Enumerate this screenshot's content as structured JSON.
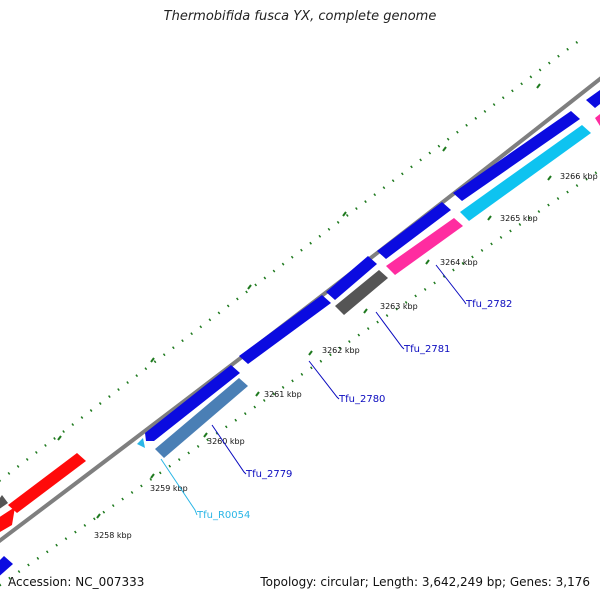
{
  "title": "Thermobifida fusca YX, complete genome",
  "footer": {
    "accession": "Accession: NC_007333",
    "topology": "Topology: circular; Length: 3,642,249 bp; Genes: 3,176"
  },
  "colors": {
    "backbone": "#7f7f7f",
    "tick": "#1f7a1f",
    "cds_dark_blue": "#0b0be0",
    "cds_steel_blue": "#4a7fb5",
    "cds_red": "#ff0a0a",
    "cds_pink": "#ff2ca0",
    "cds_cyan": "#0ec3f0",
    "cds_gray": "#555555",
    "label_blue": "#0b0bbf",
    "label_cyan": "#2bb6e6"
  },
  "kbp_labels": [
    "3258 kbp",
    "3259 kbp",
    "3260 kbp",
    "3261 kbp",
    "3262 kbp",
    "3263 kbp",
    "3264 kbp",
    "3265 kbp",
    "3266 kbp"
  ],
  "genes": [
    {
      "name": "Tfu_R0054",
      "color_key": "label_cyan"
    },
    {
      "name": "Tfu_2779",
      "color_key": "label_blue"
    },
    {
      "name": "Tfu_2780",
      "color_key": "label_blue"
    },
    {
      "name": "Tfu_2781",
      "color_key": "label_blue"
    },
    {
      "name": "Tfu_2782",
      "color_key": "label_blue"
    }
  ]
}
